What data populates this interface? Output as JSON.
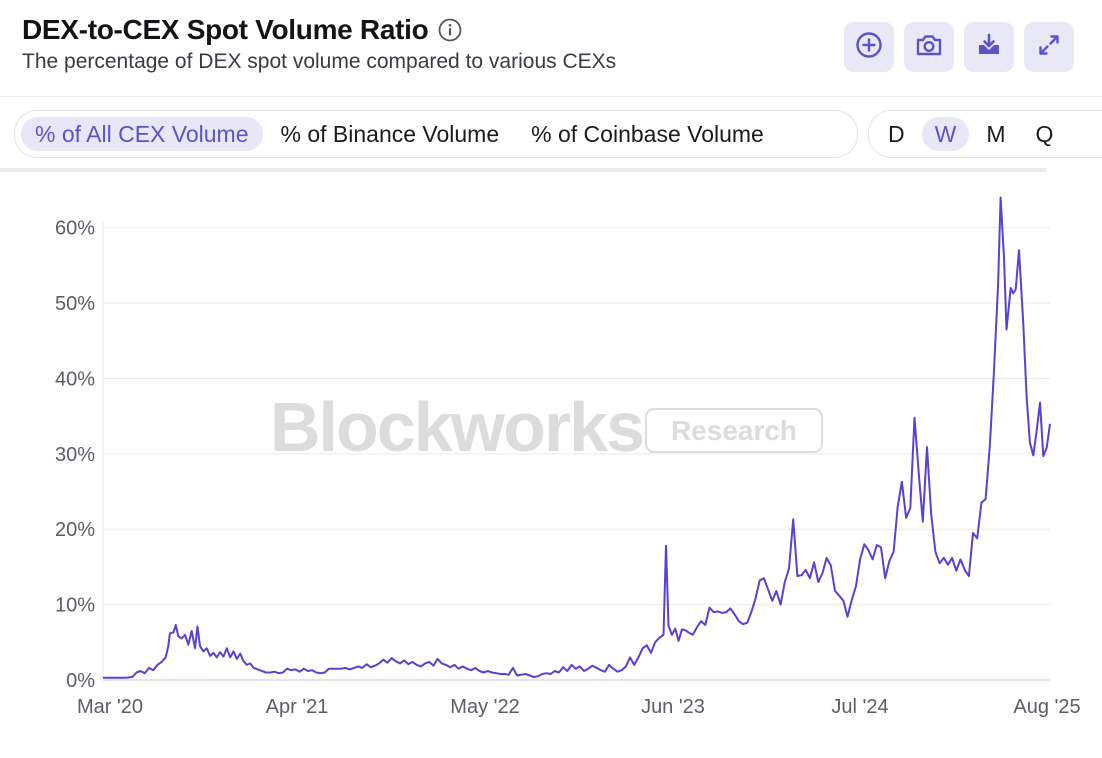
{
  "header": {
    "title": "DEX-to-CEX Spot Volume Ratio",
    "subtitle": "The percentage of DEX spot volume compared to various CEXs"
  },
  "toolbar": {
    "icons": [
      "plus-circle-icon",
      "camera-icon",
      "download-icon",
      "expand-icon"
    ]
  },
  "tabs": [
    {
      "label": "% of All CEX Volume",
      "active": true
    },
    {
      "label": "% of Binance Volume",
      "active": false
    },
    {
      "label": "% of Coinbase Volume",
      "active": false
    }
  ],
  "periods": [
    {
      "label": "D",
      "active": false
    },
    {
      "label": "W",
      "active": true
    },
    {
      "label": "M",
      "active": false
    },
    {
      "label": "Q",
      "active": false
    }
  ],
  "watermark": {
    "brand": "Blockworks",
    "tag": "Research"
  },
  "colors": {
    "line": "#5b3fd6",
    "accent": "#5b54c9",
    "active_bg": "#e7e7f7"
  },
  "chart_data": {
    "type": "line",
    "title": "DEX-to-CEX Spot Volume Ratio",
    "x_ticks": [
      "Mar '20",
      "Apr '21",
      "May '22",
      "Jun '23",
      "Jul '24",
      "Aug '25"
    ],
    "y_ticks": [
      "0%",
      "10%",
      "20%",
      "30%",
      "40%",
      "50%",
      "60%"
    ],
    "ylim": [
      0,
      65
    ],
    "x_unit": "months since Mar 2020",
    "grid": true,
    "series": [
      {
        "name": "% of All CEX Volume",
        "points": [
          [
            0,
            0.3
          ],
          [
            0.7,
            0.3
          ],
          [
            1.4,
            0.3
          ],
          [
            2.1,
            0.3
          ],
          [
            2.8,
            0.3
          ],
          [
            3.5,
            0.4
          ],
          [
            4,
            1.0
          ],
          [
            4.5,
            1.2
          ],
          [
            5,
            0.9
          ],
          [
            5.5,
            1.6
          ],
          [
            6,
            1.3
          ],
          [
            6.5,
            2.0
          ],
          [
            7,
            2.4
          ],
          [
            7.5,
            3.0
          ],
          [
            7.8,
            4.5
          ],
          [
            8.0,
            6.2
          ],
          [
            8.4,
            6.3
          ],
          [
            8.7,
            7.3
          ],
          [
            9.0,
            5.8
          ],
          [
            9.4,
            5.5
          ],
          [
            9.8,
            6.0
          ],
          [
            10.2,
            4.7
          ],
          [
            10.6,
            6.5
          ],
          [
            11.0,
            4.2
          ],
          [
            11.3,
            7.1
          ],
          [
            11.6,
            4.5
          ],
          [
            12.0,
            3.8
          ],
          [
            12.4,
            4.2
          ],
          [
            12.8,
            3.2
          ],
          [
            13.2,
            3.6
          ],
          [
            13.6,
            3.0
          ],
          [
            14.0,
            3.7
          ],
          [
            14.4,
            3.1
          ],
          [
            14.8,
            4.2
          ],
          [
            15.2,
            3.0
          ],
          [
            15.6,
            3.8
          ],
          [
            16.0,
            2.8
          ],
          [
            16.4,
            3.5
          ],
          [
            16.8,
            2.5
          ],
          [
            17.2,
            2.0
          ],
          [
            17.6,
            2.2
          ],
          [
            18,
            1.6
          ],
          [
            18.5,
            1.4
          ],
          [
            19,
            1.2
          ],
          [
            19.5,
            1.0
          ],
          [
            20,
            1.0
          ],
          [
            20.5,
            1.1
          ],
          [
            21,
            0.9
          ],
          [
            21.5,
            1.0
          ],
          [
            22,
            1.5
          ],
          [
            22.5,
            1.3
          ],
          [
            23,
            1.4
          ],
          [
            23.5,
            1.1
          ],
          [
            24,
            1.5
          ],
          [
            24.5,
            1.2
          ],
          [
            25,
            1.3
          ],
          [
            25.5,
            1.0
          ],
          [
            26,
            0.9
          ],
          [
            26.5,
            1.0
          ],
          [
            27,
            1.5
          ],
          [
            27.5,
            1.5
          ],
          [
            28,
            1.5
          ],
          [
            28.5,
            1.5
          ],
          [
            29,
            1.6
          ],
          [
            29.5,
            1.4
          ],
          [
            30,
            1.6
          ],
          [
            30.5,
            1.8
          ],
          [
            31,
            1.6
          ],
          [
            31.5,
            2.1
          ],
          [
            32,
            1.7
          ],
          [
            32.5,
            1.9
          ],
          [
            33,
            2.2
          ],
          [
            33.5,
            2.7
          ],
          [
            34,
            2.3
          ],
          [
            34.5,
            2.9
          ],
          [
            35,
            2.5
          ],
          [
            35.5,
            2.2
          ],
          [
            36,
            2.6
          ],
          [
            36.5,
            2.1
          ],
          [
            37,
            2.4
          ],
          [
            37.5,
            2.0
          ],
          [
            38,
            1.8
          ],
          [
            38.5,
            2.2
          ],
          [
            39,
            2.4
          ],
          [
            39.5,
            1.9
          ],
          [
            40,
            2.8
          ],
          [
            40.5,
            2.2
          ],
          [
            41,
            2.0
          ],
          [
            41.5,
            1.7
          ],
          [
            42,
            2.0
          ],
          [
            42.5,
            1.5
          ],
          [
            43,
            1.8
          ],
          [
            43.5,
            1.5
          ],
          [
            44,
            1.3
          ],
          [
            44.5,
            1.6
          ],
          [
            45,
            1.2
          ],
          [
            45.5,
            1.0
          ],
          [
            46,
            1.2
          ],
          [
            46.5,
            1.0
          ],
          [
            47,
            0.9
          ],
          [
            47.5,
            0.8
          ],
          [
            48,
            0.8
          ],
          [
            48.5,
            0.7
          ],
          [
            49,
            1.6
          ],
          [
            49.5,
            0.6
          ],
          [
            50,
            0.7
          ],
          [
            50.5,
            0.8
          ],
          [
            51,
            0.6
          ],
          [
            51.5,
            0.4
          ],
          [
            52,
            0.5
          ],
          [
            52.5,
            0.8
          ],
          [
            53,
            0.9
          ],
          [
            53.5,
            0.8
          ],
          [
            54,
            1.2
          ],
          [
            54.5,
            1.0
          ],
          [
            55,
            1.7
          ],
          [
            55.5,
            1.2
          ],
          [
            56,
            2.0
          ],
          [
            56.5,
            1.5
          ],
          [
            57,
            1.8
          ],
          [
            57.5,
            1.2
          ],
          [
            58,
            1.5
          ],
          [
            58.5,
            1.9
          ],
          [
            59,
            1.6
          ],
          [
            59.5,
            1.3
          ],
          [
            60,
            1.1
          ],
          [
            60.5,
            2.0
          ],
          [
            61,
            1.5
          ],
          [
            61.5,
            1.1
          ],
          [
            62,
            1.3
          ],
          [
            62.5,
            1.8
          ],
          [
            63,
            3.0
          ],
          [
            63.5,
            2.0
          ],
          [
            64,
            3.0
          ],
          [
            64.5,
            4.2
          ],
          [
            65,
            4.6
          ],
          [
            65.5,
            3.6
          ],
          [
            66,
            5.0
          ],
          [
            66.5,
            5.6
          ],
          [
            67,
            6.0
          ],
          [
            67.3,
            17.8
          ],
          [
            67.6,
            7.2
          ],
          [
            68,
            6.0
          ],
          [
            68.4,
            6.8
          ],
          [
            68.8,
            5.2
          ],
          [
            69.2,
            6.7
          ],
          [
            69.6,
            6.6
          ],
          [
            70,
            6.3
          ],
          [
            70.5,
            6.0
          ],
          [
            71,
            7.0
          ],
          [
            71.5,
            7.8
          ],
          [
            72,
            7.3
          ],
          [
            72.5,
            9.6
          ],
          [
            73,
            9.0
          ],
          [
            73.5,
            9.1
          ],
          [
            74,
            8.9
          ],
          [
            74.5,
            9.0
          ],
          [
            75,
            9.5
          ],
          [
            75.5,
            8.7
          ],
          [
            76,
            7.8
          ],
          [
            76.5,
            7.4
          ],
          [
            77,
            7.6
          ],
          [
            77.5,
            9.0
          ],
          [
            78,
            10.8
          ],
          [
            78.5,
            13.2
          ],
          [
            79,
            13.5
          ],
          [
            79.5,
            12.0
          ],
          [
            80,
            10.5
          ],
          [
            80.5,
            11.8
          ],
          [
            81,
            10.0
          ],
          [
            81.5,
            13.0
          ],
          [
            82,
            14.8
          ],
          [
            82.5,
            21.3
          ],
          [
            83,
            13.8
          ],
          [
            83.5,
            13.9
          ],
          [
            84,
            14.6
          ],
          [
            84.5,
            13.5
          ],
          [
            85,
            15.6
          ],
          [
            85.5,
            13.0
          ],
          [
            86,
            14.2
          ],
          [
            86.5,
            16.2
          ],
          [
            87,
            15.2
          ],
          [
            87.5,
            11.8
          ],
          [
            88,
            11.2
          ],
          [
            88.5,
            10.5
          ],
          [
            89,
            8.4
          ],
          [
            89.5,
            10.6
          ],
          [
            90,
            12.4
          ],
          [
            90.5,
            16.0
          ],
          [
            91,
            18.0
          ],
          [
            91.5,
            17.2
          ],
          [
            92,
            16.0
          ],
          [
            92.5,
            17.9
          ],
          [
            93,
            17.6
          ],
          [
            93.5,
            13.5
          ],
          [
            94,
            15.8
          ],
          [
            94.5,
            17.0
          ],
          [
            95,
            23.0
          ],
          [
            95.5,
            26.3
          ],
          [
            96,
            21.5
          ],
          [
            96.5,
            22.8
          ],
          [
            97,
            34.8
          ],
          [
            97.5,
            27.5
          ],
          [
            98,
            21.0
          ],
          [
            98.5,
            30.9
          ],
          [
            99,
            22.0
          ],
          [
            99.5,
            17.0
          ],
          [
            100,
            15.5
          ],
          [
            100.5,
            16.2
          ],
          [
            101,
            15.3
          ],
          [
            101.5,
            16.2
          ],
          [
            102,
            14.5
          ],
          [
            102.5,
            16.0
          ],
          [
            103,
            14.6
          ],
          [
            103.5,
            13.8
          ],
          [
            104,
            19.5
          ],
          [
            104.5,
            18.8
          ],
          [
            105,
            23.5
          ],
          [
            105.5,
            24.0
          ],
          [
            106,
            31.0
          ],
          [
            106.5,
            40.8
          ],
          [
            107,
            52.5
          ],
          [
            107.3,
            64.0
          ],
          [
            107.7,
            56.0
          ],
          [
            108,
            46.5
          ],
          [
            108.5,
            52.0
          ],
          [
            108.8,
            51.3
          ],
          [
            109.1,
            51.8
          ],
          [
            109.5,
            57.0
          ],
          [
            110,
            47.5
          ],
          [
            110.4,
            37.6
          ],
          [
            110.8,
            31.5
          ],
          [
            111.2,
            29.8
          ],
          [
            111.6,
            33.0
          ],
          [
            112,
            36.8
          ],
          [
            112.4,
            29.7
          ],
          [
            112.8,
            30.8
          ],
          [
            113.2,
            34.0
          ]
        ]
      }
    ]
  }
}
